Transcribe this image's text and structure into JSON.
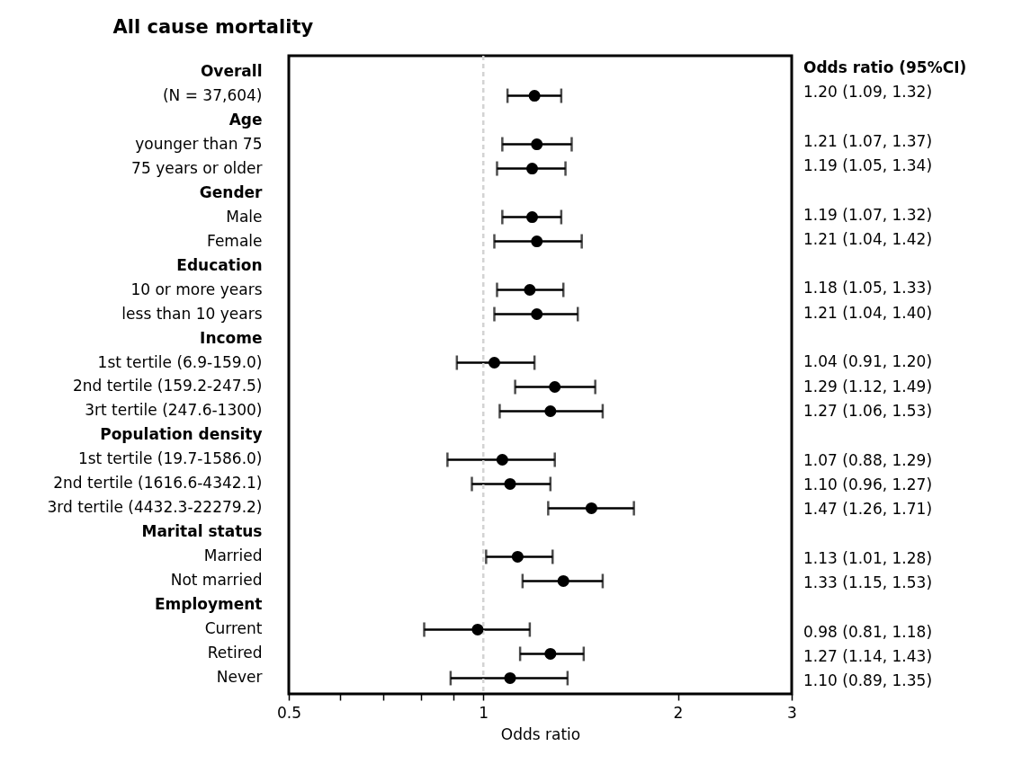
{
  "chart_data": {
    "type": "scatter",
    "orientation": "horizontal",
    "title": "All cause mortality",
    "xlabel": "Odds ratio",
    "categories": [
      "Overall",
      "(N = 37,604)",
      "Age",
      "younger than 75",
      "75 years or older",
      "Gender",
      "Male",
      "Female",
      "Education",
      "10 or more years",
      "less than 10 years",
      "Income",
      "1st tertile (6.9-159.0)",
      "2nd tertile (159.2-247.5)",
      "3rt tertile (247.6-1300)",
      "Population density",
      "1st tertile (19.7-1586.0)",
      "2nd tertile (1616.6-4342.1)",
      "3rd tertile (4432.3-22279.2)",
      "Marital status",
      "Married",
      "Not married",
      "Employment",
      "Current",
      "Retired",
      "Never"
    ],
    "values": [
      null,
      1.2,
      null,
      1.21,
      1.19,
      null,
      1.19,
      1.21,
      null,
      1.18,
      1.21,
      null,
      1.04,
      1.29,
      1.27,
      null,
      1.07,
      1.1,
      1.47,
      null,
      1.13,
      1.33,
      null,
      0.98,
      1.27,
      1.1
    ],
    "errors": [
      null,
      [
        1.09,
        1.32
      ],
      null,
      [
        1.07,
        1.37
      ],
      [
        1.05,
        1.34
      ],
      null,
      [
        1.07,
        1.32
      ],
      [
        1.04,
        1.42
      ],
      null,
      [
        1.05,
        1.33
      ],
      [
        1.04,
        1.4
      ],
      null,
      [
        0.91,
        1.2
      ],
      [
        1.12,
        1.49
      ],
      [
        1.06,
        1.53
      ],
      null,
      [
        0.88,
        1.29
      ],
      [
        0.96,
        1.27
      ],
      [
        1.26,
        1.71
      ],
      null,
      [
        1.01,
        1.28
      ],
      [
        1.15,
        1.53
      ],
      null,
      [
        0.81,
        1.18
      ],
      [
        1.14,
        1.43
      ],
      [
        0.89,
        1.35
      ]
    ],
    "value_labels": [
      null,
      "1.20 (1.09, 1.32)",
      null,
      "1.21 (1.07, 1.37)",
      "1.19 (1.05, 1.34)",
      null,
      "1.19 (1.07, 1.32)",
      "1.21 (1.04, 1.42)",
      null,
      "1.18 (1.05, 1.33)",
      "1.21 (1.04, 1.40)",
      null,
      "1.04 (0.91, 1.20)",
      "1.29 (1.12, 1.49)",
      "1.27 (1.06, 1.53)",
      null,
      "1.07 (0.88, 1.29)",
      "1.10 (0.96, 1.27)",
      "1.47 (1.26, 1.71)",
      null,
      "1.13 (1.01, 1.28)",
      "1.33 (1.15, 1.53)",
      null,
      "0.98 (0.81, 1.18)",
      "1.27 (1.14, 1.43)",
      "1.10 (0.89, 1.35)"
    ],
    "annotations": [
      "Odds ratio (95%CI)"
    ],
    "color": "#000000",
    "marker": "circle",
    "log": "x",
    "grid": false,
    "xlim": [
      0.5,
      3
    ],
    "xticks": [
      0.5,
      {
        "value": 0.6,
        "label": null
      },
      {
        "value": 0.7,
        "label": null
      },
      {
        "value": 0.8,
        "label": null
      },
      {
        "value": 0.9,
        "label": null
      },
      1,
      2,
      3
    ],
    "ref_lines": [
      {
        "axis": "x",
        "value": 1,
        "label": null,
        "color": "#d3d3d3",
        "line_style": "dashed"
      }
    ]
  }
}
